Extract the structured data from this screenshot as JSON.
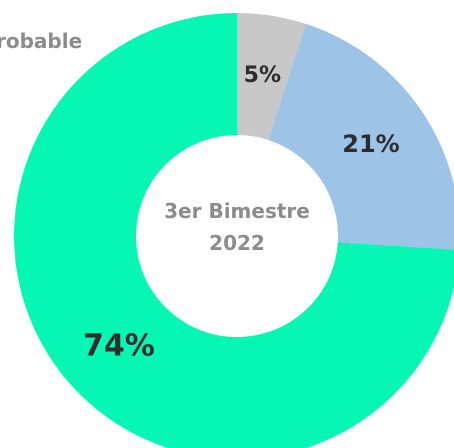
{
  "chart_data": {
    "type": "pie",
    "categories": [
      "",
      "",
      ""
    ],
    "values": [
      5,
      21,
      74
    ],
    "labels": [
      "5%",
      "21%",
      "74%"
    ],
    "colors": [
      "#c8c8c8",
      "#9dc3e6",
      "#05f7b3"
    ],
    "center_title": "3er Bimestre",
    "center_subtitle": "2022",
    "legend_entry": "robable"
  }
}
